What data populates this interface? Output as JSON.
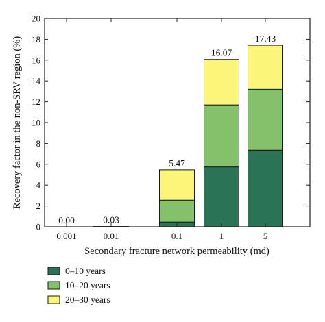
{
  "chart_data": {
    "type": "bar",
    "stacked": true,
    "categories": [
      "0.001",
      "0.01",
      "0.1",
      "1",
      "5"
    ],
    "series": [
      {
        "name": "0–10 years",
        "color": "#2a7357",
        "values": [
          0,
          0.01,
          0.45,
          5.75,
          7.35
        ]
      },
      {
        "name": "10–20 years",
        "color": "#85c06a",
        "values": [
          0,
          0.01,
          2.1,
          5.95,
          5.85
        ]
      },
      {
        "name": "20–30 years",
        "color": "#fbf67a",
        "values": [
          0,
          0.01,
          2.92,
          4.37,
          4.23
        ]
      }
    ],
    "totals": [
      "0.00",
      "0.03",
      "5.47",
      "16.07",
      "17.43"
    ],
    "xlabel": "Secondary fracture network permeability (md)",
    "ylabel": "Recovery factor in the non-SRV region (%)",
    "ylim": [
      0,
      20
    ],
    "yticks": [
      "0",
      "2",
      "4",
      "6",
      "8",
      "10",
      "12",
      "14",
      "16",
      "18",
      "20"
    ],
    "grid": false,
    "legend_position": "bottom-left"
  }
}
